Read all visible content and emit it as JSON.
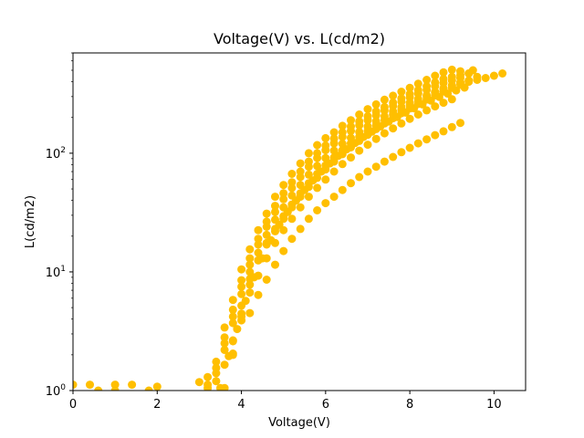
{
  "chart_data": {
    "type": "scatter",
    "title": "Voltage(V) vs. L(cd/m2)",
    "xlabel": "Voltage(V)",
    "ylabel": "L(cd/m2)",
    "xlim": [
      0,
      10.75
    ],
    "ylim": [
      1,
      700
    ],
    "yscale": "log",
    "grid": false,
    "x_ticks": [
      0,
      2,
      4,
      6,
      8,
      10
    ],
    "y_ticks": [
      {
        "value": 1,
        "base": "10",
        "exp": "0"
      },
      {
        "value": 10,
        "base": "10",
        "exp": "1"
      },
      {
        "value": 100,
        "base": "10",
        "exp": "2"
      }
    ],
    "marker_color": "#FFBF00",
    "series": [
      {
        "points": [
          [
            0.0,
            1.12
          ],
          [
            0.4,
            1.12
          ],
          [
            1.0,
            1.12
          ],
          [
            1.4,
            1.12
          ],
          [
            2.0,
            1.08
          ],
          [
            3.0,
            1.18
          ],
          [
            3.2,
            1.3
          ],
          [
            3.4,
            1.75
          ],
          [
            3.6,
            3.4
          ],
          [
            3.8,
            5.8
          ],
          [
            4.0,
            10.5
          ],
          [
            4.2,
            15.5
          ],
          [
            4.4,
            22.5
          ],
          [
            4.6,
            31
          ],
          [
            4.8,
            43
          ],
          [
            5.0,
            54
          ],
          [
            5.2,
            67
          ],
          [
            5.4,
            82
          ],
          [
            5.6,
            100
          ],
          [
            5.8,
            117
          ],
          [
            6.0,
            134
          ],
          [
            6.2,
            150
          ],
          [
            6.4,
            170
          ],
          [
            6.6,
            190
          ],
          [
            6.8,
            212
          ],
          [
            7.0,
            235
          ],
          [
            7.2,
            258
          ],
          [
            7.4,
            282
          ],
          [
            7.6,
            305
          ],
          [
            7.8,
            330
          ],
          [
            8.0,
            355
          ],
          [
            8.2,
            385
          ],
          [
            8.4,
            415
          ],
          [
            8.6,
            450
          ],
          [
            8.8,
            480
          ],
          [
            9.0,
            505
          ],
          [
            9.2,
            490
          ],
          [
            9.4,
            470
          ],
          [
            9.6,
            440
          ]
        ]
      },
      {
        "points": [
          [
            0.6,
            1.0
          ],
          [
            1.0,
            1.0
          ],
          [
            1.8,
            1.0
          ],
          [
            3.2,
            1.12
          ],
          [
            3.4,
            1.55
          ],
          [
            3.6,
            2.8
          ],
          [
            3.8,
            4.8
          ],
          [
            4.0,
            8.5
          ],
          [
            4.2,
            13
          ],
          [
            4.4,
            19
          ],
          [
            4.6,
            26.5
          ],
          [
            4.8,
            36
          ],
          [
            5.0,
            46
          ],
          [
            5.2,
            57
          ],
          [
            5.4,
            70
          ],
          [
            5.6,
            85
          ],
          [
            5.8,
            100
          ],
          [
            6.0,
            116
          ],
          [
            6.2,
            133
          ],
          [
            6.4,
            150
          ],
          [
            6.6,
            168
          ],
          [
            6.8,
            186
          ],
          [
            7.0,
            205
          ],
          [
            7.2,
            225
          ],
          [
            7.4,
            245
          ],
          [
            7.6,
            267
          ],
          [
            7.8,
            290
          ],
          [
            8.0,
            315
          ],
          [
            8.2,
            340
          ],
          [
            8.4,
            367
          ],
          [
            8.6,
            395
          ],
          [
            8.8,
            422
          ],
          [
            9.0,
            440
          ],
          [
            9.2,
            455
          ],
          [
            9.4,
            470
          ],
          [
            9.5,
            500
          ]
        ]
      },
      {
        "points": [
          [
            3.2,
            1.05
          ],
          [
            3.4,
            1.4
          ],
          [
            3.6,
            2.5
          ],
          [
            3.8,
            4.2
          ],
          [
            4.0,
            7.5
          ],
          [
            4.2,
            11.5
          ],
          [
            4.4,
            17
          ],
          [
            4.6,
            24
          ],
          [
            4.8,
            32
          ],
          [
            5.0,
            41
          ],
          [
            5.2,
            51
          ],
          [
            5.4,
            63
          ],
          [
            5.6,
            77
          ],
          [
            5.8,
            91
          ],
          [
            6.0,
            106
          ],
          [
            6.2,
            121
          ],
          [
            6.4,
            137
          ],
          [
            6.6,
            154
          ],
          [
            6.8,
            172
          ],
          [
            7.0,
            190
          ],
          [
            7.2,
            209
          ],
          [
            7.4,
            229
          ],
          [
            7.6,
            250
          ],
          [
            7.8,
            272
          ],
          [
            8.0,
            295
          ],
          [
            8.2,
            318
          ],
          [
            8.4,
            342
          ],
          [
            8.6,
            367
          ],
          [
            8.8,
            390
          ],
          [
            9.0,
            410
          ],
          [
            9.2,
            430
          ]
        ]
      },
      {
        "points": [
          [
            3.4,
            1.2
          ],
          [
            3.6,
            2.2
          ],
          [
            3.8,
            3.7
          ],
          [
            4.0,
            6.5
          ],
          [
            4.2,
            10
          ],
          [
            4.4,
            14.5
          ],
          [
            4.6,
            20.5
          ],
          [
            4.8,
            27.5
          ],
          [
            5.0,
            35
          ],
          [
            5.2,
            44
          ],
          [
            5.4,
            54
          ],
          [
            5.6,
            66
          ],
          [
            5.8,
            78
          ],
          [
            6.0,
            91
          ],
          [
            6.2,
            105
          ],
          [
            6.4,
            120
          ],
          [
            6.6,
            135
          ],
          [
            6.8,
            151
          ],
          [
            7.0,
            168
          ],
          [
            7.2,
            186
          ],
          [
            7.4,
            205
          ],
          [
            7.6,
            225
          ],
          [
            7.8,
            245
          ],
          [
            8.0,
            266
          ],
          [
            8.2,
            287
          ],
          [
            8.4,
            308
          ],
          [
            8.6,
            330
          ],
          [
            8.8,
            352
          ],
          [
            9.0,
            372
          ],
          [
            9.2,
            393
          ],
          [
            9.4,
            410
          ]
        ]
      },
      {
        "points": [
          [
            3.5,
            1.05
          ],
          [
            3.7,
            1.95
          ],
          [
            3.9,
            3.3
          ],
          [
            4.1,
            5.7
          ],
          [
            4.3,
            9
          ],
          [
            4.5,
            13
          ],
          [
            4.7,
            18.5
          ],
          [
            4.9,
            25
          ],
          [
            5.1,
            32
          ],
          [
            5.3,
            40
          ],
          [
            5.5,
            49
          ],
          [
            5.7,
            59
          ],
          [
            5.9,
            70
          ],
          [
            6.1,
            82
          ],
          [
            6.3,
            95
          ],
          [
            6.5,
            108
          ],
          [
            6.7,
            122
          ],
          [
            6.9,
            137
          ],
          [
            7.1,
            152
          ],
          [
            7.3,
            168
          ],
          [
            7.5,
            185
          ],
          [
            7.7,
            202
          ],
          [
            7.9,
            220
          ],
          [
            8.1,
            239
          ],
          [
            8.3,
            258
          ],
          [
            8.5,
            278
          ],
          [
            8.7,
            298
          ],
          [
            8.9,
            318
          ],
          [
            9.1,
            338
          ],
          [
            9.3,
            357
          ]
        ]
      },
      {
        "points": [
          [
            3.6,
            1.05
          ],
          [
            3.8,
            2.0
          ],
          [
            4.0,
            4.2
          ],
          [
            4.2,
            7.8
          ],
          [
            4.4,
            12.5
          ],
          [
            4.6,
            17.5
          ],
          [
            4.8,
            23
          ],
          [
            5.0,
            29.5
          ],
          [
            5.2,
            37
          ],
          [
            5.4,
            46
          ],
          [
            5.6,
            56
          ],
          [
            5.8,
            67
          ],
          [
            6.0,
            79
          ],
          [
            6.2,
            92
          ],
          [
            6.4,
            106
          ],
          [
            6.6,
            121
          ],
          [
            6.8,
            137
          ],
          [
            7.0,
            154
          ],
          [
            7.2,
            172
          ],
          [
            7.4,
            191
          ],
          [
            7.6,
            211
          ],
          [
            7.8,
            232
          ],
          [
            8.0,
            254
          ],
          [
            8.2,
            277
          ],
          [
            8.4,
            300
          ],
          [
            8.6,
            324
          ],
          [
            8.8,
            348
          ],
          [
            9.0,
            372
          ],
          [
            9.2,
            395
          ]
        ]
      },
      {
        "points": [
          [
            3.8,
            2.6
          ],
          [
            4.0,
            5.2
          ],
          [
            4.2,
            8.7
          ],
          [
            4.4,
            12.5
          ],
          [
            4.6,
            17
          ],
          [
            4.8,
            22
          ],
          [
            5.0,
            28
          ],
          [
            5.2,
            35
          ],
          [
            5.4,
            43
          ],
          [
            5.6,
            52
          ],
          [
            5.8,
            62
          ],
          [
            6.0,
            73
          ],
          [
            6.2,
            85
          ],
          [
            6.4,
            98
          ],
          [
            6.6,
            112
          ],
          [
            6.8,
            127
          ],
          [
            7.0,
            143
          ],
          [
            7.2,
            160
          ],
          [
            7.4,
            178
          ],
          [
            7.6,
            197
          ],
          [
            7.8,
            217
          ],
          [
            8.0,
            238
          ],
          [
            8.2,
            260
          ],
          [
            8.4,
            283
          ],
          [
            8.6,
            307
          ],
          [
            8.8,
            331
          ],
          [
            9.0,
            355
          ],
          [
            9.2,
            378
          ],
          [
            9.4,
            400
          ],
          [
            9.6,
            415
          ],
          [
            9.8,
            430
          ],
          [
            10.0,
            450
          ],
          [
            10.2,
            470
          ]
        ]
      },
      {
        "points": [
          [
            3.8,
            2.05
          ],
          [
            4.0,
            3.9
          ],
          [
            4.2,
            6.7
          ],
          [
            4.4,
            9.3
          ],
          [
            4.6,
            13
          ],
          [
            4.8,
            17.5
          ],
          [
            5.0,
            22.5
          ],
          [
            5.2,
            28
          ],
          [
            5.4,
            35
          ],
          [
            5.6,
            43
          ],
          [
            5.8,
            51
          ],
          [
            6.0,
            60
          ],
          [
            6.2,
            70
          ],
          [
            6.4,
            81
          ],
          [
            6.6,
            92
          ],
          [
            6.8,
            105
          ],
          [
            7.0,
            118
          ],
          [
            7.2,
            132
          ],
          [
            7.4,
            147
          ],
          [
            7.6,
            162
          ],
          [
            7.8,
            178
          ],
          [
            8.0,
            195
          ],
          [
            8.2,
            212
          ],
          [
            8.4,
            230
          ],
          [
            8.6,
            248
          ],
          [
            8.8,
            266
          ],
          [
            9.0,
            285
          ]
        ]
      },
      {
        "points": [
          [
            3.6,
            1.65
          ],
          [
            3.8,
            2.65
          ],
          [
            4.0,
            4.45
          ],
          [
            4.2,
            4.5
          ],
          [
            4.4,
            6.4
          ],
          [
            4.6,
            8.6
          ],
          [
            4.8,
            11.5
          ],
          [
            5.0,
            15
          ],
          [
            5.2,
            19
          ],
          [
            5.4,
            23
          ],
          [
            5.6,
            28
          ],
          [
            5.8,
            33
          ],
          [
            6.0,
            38
          ],
          [
            6.2,
            43
          ],
          [
            6.4,
            49
          ],
          [
            6.6,
            56
          ],
          [
            6.8,
            63
          ],
          [
            7.0,
            70
          ],
          [
            7.2,
            77
          ],
          [
            7.4,
            85
          ],
          [
            7.6,
            93
          ],
          [
            7.8,
            102
          ],
          [
            8.0,
            111
          ],
          [
            8.2,
            121
          ],
          [
            8.4,
            131
          ],
          [
            8.6,
            142
          ],
          [
            8.8,
            153
          ],
          [
            9.0,
            166
          ],
          [
            9.2,
            180
          ]
        ]
      }
    ]
  }
}
